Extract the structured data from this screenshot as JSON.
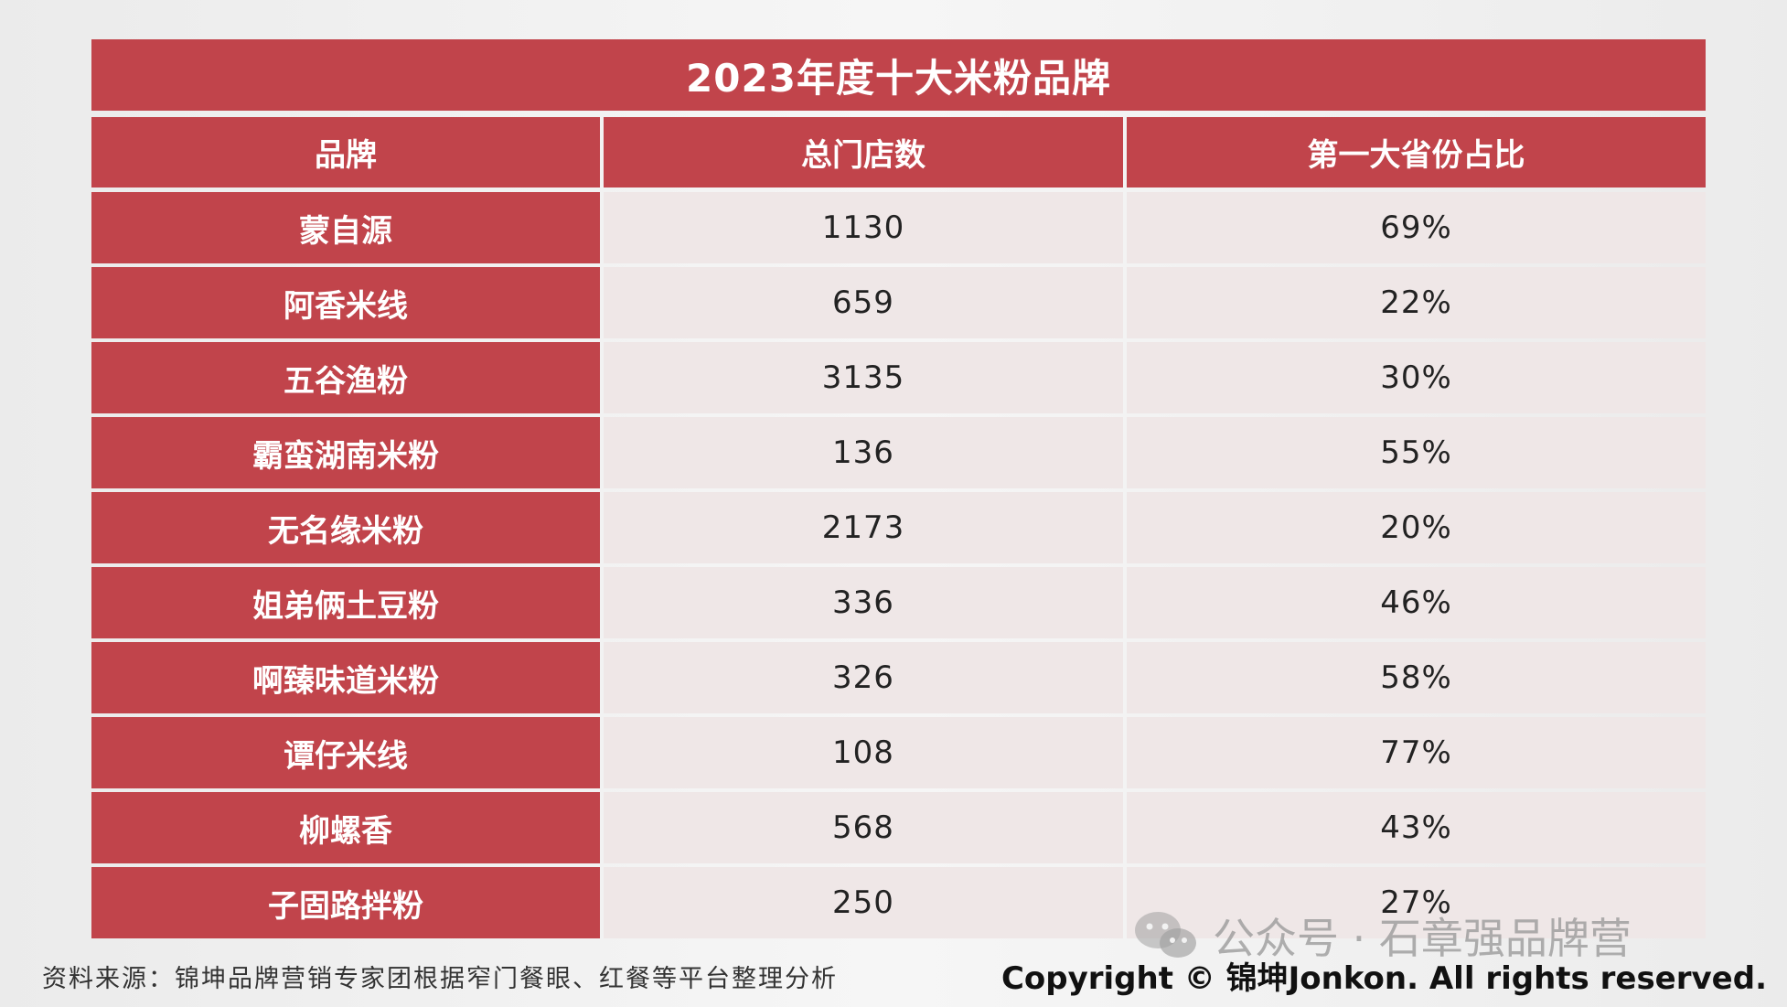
{
  "title": "2023年度十大米粉品牌",
  "headers": {
    "brand": "品牌",
    "stores": "总门店数",
    "share": "第一大省份占比"
  },
  "rows": [
    {
      "brand": "蒙自源",
      "stores": "1130",
      "share": "69%"
    },
    {
      "brand": "阿香米线",
      "stores": "659",
      "share": "22%"
    },
    {
      "brand": "五谷渔粉",
      "stores": "3135",
      "share": "30%"
    },
    {
      "brand": "霸蛮湖南米粉",
      "stores": "136",
      "share": "55%"
    },
    {
      "brand": "无名缘米粉",
      "stores": "2173",
      "share": "20%"
    },
    {
      "brand": "姐弟俩土豆粉",
      "stores": "336",
      "share": "46%"
    },
    {
      "brand": "啊臻味道米粉",
      "stores": "326",
      "share": "58%"
    },
    {
      "brand": "谭仔米线",
      "stores": "108",
      "share": "77%"
    },
    {
      "brand": "柳螺香",
      "stores": "568",
      "share": "43%"
    },
    {
      "brand": "子固路拌粉",
      "stores": "250",
      "share": "27%"
    }
  ],
  "footer": {
    "source": "资料来源：锦坤品牌营销专家团根据窄门餐眼、红餐等平台整理分析",
    "copyright": "Copyright © 锦坤Jonkon. All rights reserved."
  },
  "watermark": {
    "text": "公众号 · 石章强品牌营",
    "icon": "wechat-icon"
  },
  "colors": {
    "header_red": "#c1444b",
    "cell_bg": "#efe7e7"
  }
}
